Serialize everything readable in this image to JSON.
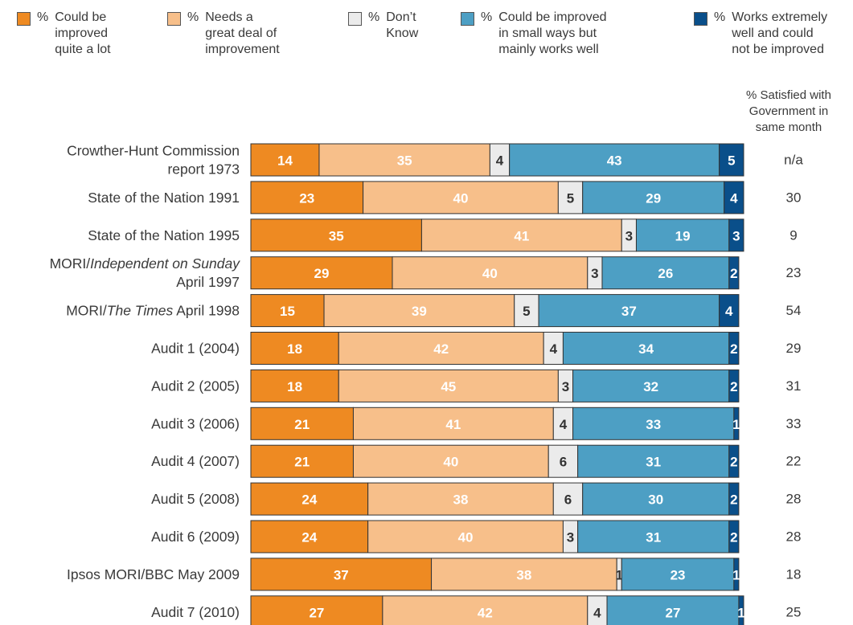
{
  "legend": {
    "items": [
      {
        "pct": "%",
        "text": "Could be\nimproved\nquite a lot",
        "color": "#ee8a22"
      },
      {
        "pct": "%",
        "text": "Needs a\ngreat deal of\nimprovement",
        "color": "#f7bf8a"
      },
      {
        "pct": "%",
        "text": "Don’t\nKnow",
        "color": "#ebebeb"
      },
      {
        "pct": "%",
        "text": "Could be improved\nin small ways but\nmainly works well",
        "color": "#4d9fc4"
      },
      {
        "pct": "%",
        "text": "Works extremely\nwell and could\nnot be improved",
        "color": "#0a4f8a"
      }
    ]
  },
  "satisfied_header": "% Satisfied with\nGovernment in\nsame month",
  "chart_data": {
    "type": "bar",
    "orientation": "horizontal",
    "stacked": true,
    "categories": [
      [
        "Crowther-Hunt Commission",
        "report 1973"
      ],
      [
        "State of the Nation 1991"
      ],
      [
        "State of the Nation 1995"
      ],
      [
        "MORI/Independent on Sunday",
        "April 1997"
      ],
      [
        "MORI/The Times April 1998"
      ],
      [
        "Audit 1 (2004)"
      ],
      [
        "Audit 2 (2005)"
      ],
      [
        "Audit 3 (2006)"
      ],
      [
        "Audit 4 (2007)"
      ],
      [
        "Audit 5 (2008)"
      ],
      [
        "Audit 6 (2009)"
      ],
      [
        "Ipsos MORI/BBC May 2009"
      ],
      [
        "Audit 7 (2010)"
      ]
    ],
    "series": [
      {
        "name": "Could be improved quite a lot",
        "color": "#ee8a22",
        "label_color": "#ffffff",
        "values": [
          14,
          23,
          35,
          29,
          15,
          18,
          18,
          21,
          21,
          24,
          24,
          37,
          27
        ]
      },
      {
        "name": "Needs a great deal of improvement",
        "color": "#f7bf8a",
        "label_color": "#ffffff",
        "values": [
          35,
          40,
          41,
          40,
          39,
          42,
          45,
          41,
          40,
          38,
          40,
          38,
          42
        ]
      },
      {
        "name": "Don’t Know",
        "color": "#ebebeb",
        "label_color": "#333333",
        "values": [
          4,
          5,
          3,
          3,
          5,
          4,
          3,
          4,
          6,
          6,
          3,
          1,
          4
        ]
      },
      {
        "name": "Could be improved in small ways but mainly works well",
        "color": "#4d9fc4",
        "label_color": "#ffffff",
        "values": [
          43,
          29,
          19,
          26,
          37,
          34,
          32,
          33,
          31,
          30,
          31,
          23,
          27
        ]
      },
      {
        "name": "Works extremely well and could not be improved",
        "color": "#0a4f8a",
        "label_color": "#ffffff",
        "values": [
          5,
          4,
          3,
          2,
          4,
          2,
          2,
          1,
          2,
          2,
          2,
          1,
          1
        ]
      }
    ],
    "satisfied": [
      "n/a",
      "30",
      "9",
      "23",
      "54",
      "29",
      "31",
      "33",
      "22",
      "28",
      "28",
      "18",
      "25"
    ],
    "xlim": [
      0,
      101
    ]
  }
}
